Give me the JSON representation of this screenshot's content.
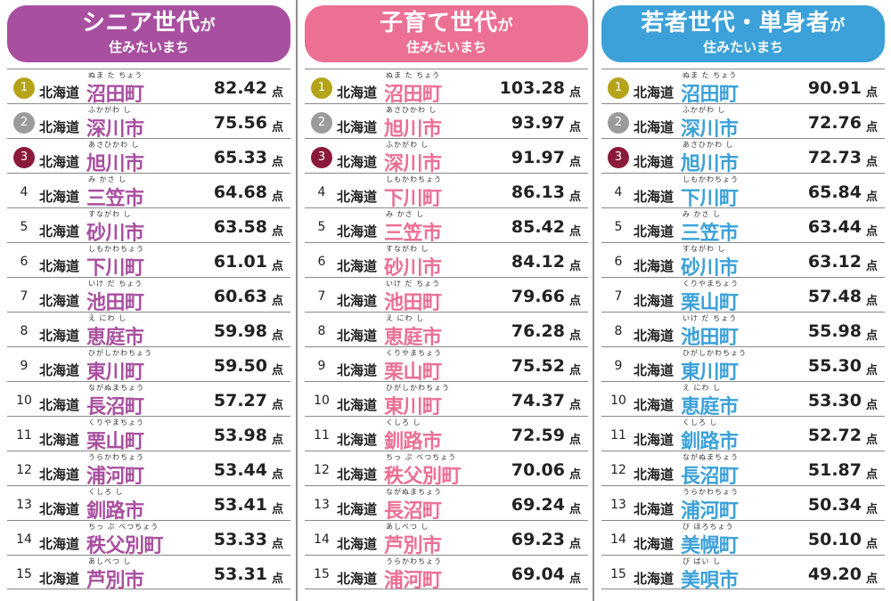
{
  "unit_label": "点",
  "prefecture": "北海道",
  "rank_badge_colors": [
    "#b5a41a",
    "#9b9b9b",
    "#8b1a3a"
  ],
  "chart_data": [
    {
      "type": "table",
      "title": "シニア世代",
      "title_suffix": "が",
      "subtitle": "住みたいまち",
      "color": "#a94fa0",
      "rows": [
        {
          "rank": "1",
          "town": "沼田町",
          "ruby": "ぬま た ちょう",
          "score": "82.42"
        },
        {
          "rank": "2",
          "town": "深川市",
          "ruby": "ふかがわ し",
          "score": "75.56"
        },
        {
          "rank": "3",
          "town": "旭川市",
          "ruby": "あさひかわ し",
          "score": "65.33"
        },
        {
          "rank": "4",
          "town": "三笠市",
          "ruby": "み かさ し",
          "score": "64.68"
        },
        {
          "rank": "5",
          "town": "砂川市",
          "ruby": "すながわ し",
          "score": "63.58"
        },
        {
          "rank": "6",
          "town": "下川町",
          "ruby": "しもかわちょう",
          "score": "61.01"
        },
        {
          "rank": "7",
          "town": "池田町",
          "ruby": "いけ だ ちょう",
          "score": "60.63"
        },
        {
          "rank": "8",
          "town": "恵庭市",
          "ruby": "え にわ し",
          "score": "59.98"
        },
        {
          "rank": "9",
          "town": "東川町",
          "ruby": "ひがしかわちょう",
          "score": "59.50"
        },
        {
          "rank": "10",
          "town": "長沼町",
          "ruby": "ながぬまちょう",
          "score": "57.27"
        },
        {
          "rank": "11",
          "town": "栗山町",
          "ruby": "くりやまちょう",
          "score": "53.98"
        },
        {
          "rank": "12",
          "town": "浦河町",
          "ruby": "うらかわちょう",
          "score": "53.44"
        },
        {
          "rank": "13",
          "town": "釧路市",
          "ruby": "くしろ し",
          "score": "53.41"
        },
        {
          "rank": "14",
          "town": "秩父別町",
          "ruby": "ちっ ぷ べつちょう",
          "score": "53.33"
        },
        {
          "rank": "15",
          "town": "芦別市",
          "ruby": "あしべつ し",
          "score": "53.31"
        }
      ]
    },
    {
      "type": "table",
      "title": "子育て世代",
      "title_suffix": "が",
      "subtitle": "住みたいまち",
      "color": "#ec6f94",
      "rows": [
        {
          "rank": "1",
          "town": "沼田町",
          "ruby": "ぬま た ちょう",
          "score": "103.28"
        },
        {
          "rank": "2",
          "town": "旭川市",
          "ruby": "あさひかわ し",
          "score": "93.97"
        },
        {
          "rank": "3",
          "town": "深川市",
          "ruby": "ふかがわ し",
          "score": "91.97"
        },
        {
          "rank": "4",
          "town": "下川町",
          "ruby": "しもかわちょう",
          "score": "86.13"
        },
        {
          "rank": "5",
          "town": "三笠市",
          "ruby": "み かさ し",
          "score": "85.42"
        },
        {
          "rank": "6",
          "town": "砂川市",
          "ruby": "すながわ し",
          "score": "84.12"
        },
        {
          "rank": "7",
          "town": "池田町",
          "ruby": "いけ だ ちょう",
          "score": "79.66"
        },
        {
          "rank": "8",
          "town": "恵庭市",
          "ruby": "え にわ し",
          "score": "76.28"
        },
        {
          "rank": "9",
          "town": "栗山町",
          "ruby": "くりやまちょう",
          "score": "75.52"
        },
        {
          "rank": "10",
          "town": "東川町",
          "ruby": "ひがしかわちょう",
          "score": "74.37"
        },
        {
          "rank": "11",
          "town": "釧路市",
          "ruby": "くしろ し",
          "score": "72.59"
        },
        {
          "rank": "12",
          "town": "秩父別町",
          "ruby": "ちっ ぷ べつちょう",
          "score": "70.06"
        },
        {
          "rank": "13",
          "town": "長沼町",
          "ruby": "ながぬまちょう",
          "score": "69.24"
        },
        {
          "rank": "14",
          "town": "芦別市",
          "ruby": "あしべつ し",
          "score": "69.23"
        },
        {
          "rank": "15",
          "town": "浦河町",
          "ruby": "うらかわちょう",
          "score": "69.04"
        }
      ]
    },
    {
      "type": "table",
      "title": "若者世代・単身者",
      "title_suffix": "が",
      "subtitle": "住みたいまち",
      "color": "#3ba1d8",
      "rows": [
        {
          "rank": "1",
          "town": "沼田町",
          "ruby": "ぬま た ちょう",
          "score": "90.91"
        },
        {
          "rank": "2",
          "town": "深川市",
          "ruby": "ふかがわ し",
          "score": "72.76"
        },
        {
          "rank": "3",
          "town": "旭川市",
          "ruby": "あさひかわ し",
          "score": "72.73"
        },
        {
          "rank": "4",
          "town": "下川町",
          "ruby": "しもかわちょう",
          "score": "65.84"
        },
        {
          "rank": "5",
          "town": "三笠市",
          "ruby": "み かさ し",
          "score": "63.44"
        },
        {
          "rank": "6",
          "town": "砂川市",
          "ruby": "すながわ し",
          "score": "63.12"
        },
        {
          "rank": "7",
          "town": "栗山町",
          "ruby": "くりやまちょう",
          "score": "57.48"
        },
        {
          "rank": "8",
          "town": "池田町",
          "ruby": "いけ だ ちょう",
          "score": "55.98"
        },
        {
          "rank": "9",
          "town": "東川町",
          "ruby": "ひがしかわちょう",
          "score": "55.30"
        },
        {
          "rank": "10",
          "town": "恵庭市",
          "ruby": "え にわ し",
          "score": "53.30"
        },
        {
          "rank": "11",
          "town": "釧路市",
          "ruby": "くしろ し",
          "score": "52.72"
        },
        {
          "rank": "12",
          "town": "長沼町",
          "ruby": "ながぬまちょう",
          "score": "51.87"
        },
        {
          "rank": "13",
          "town": "浦河町",
          "ruby": "うらかわちょう",
          "score": "50.34"
        },
        {
          "rank": "14",
          "town": "美幌町",
          "ruby": "び ほろちょう",
          "score": "50.10"
        },
        {
          "rank": "15",
          "town": "美唄市",
          "ruby": "び ばい し",
          "score": "49.20"
        }
      ]
    }
  ]
}
